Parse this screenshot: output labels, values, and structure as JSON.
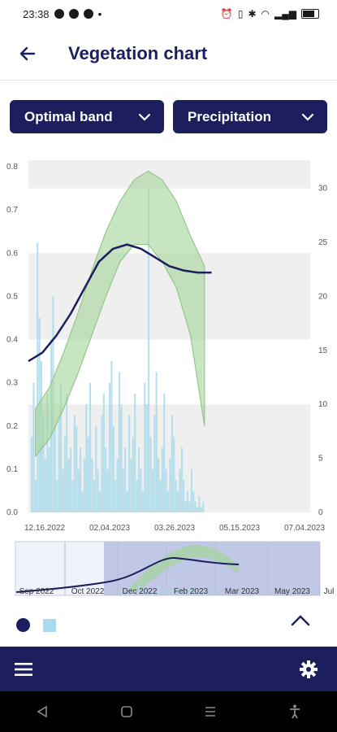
{
  "status_bar": {
    "time": "23:38",
    "left_icons": [
      "messenger-icon",
      "telegram-icon",
      "viber-icon",
      "more-dot-icon"
    ],
    "right_icons": [
      "alarm-icon",
      "vibrate-icon",
      "bluetooth-icon",
      "wifi-icon",
      "signal-icon",
      "battery-icon"
    ]
  },
  "header": {
    "title": "Vegetation chart",
    "back_icon": "arrow-left-icon"
  },
  "controls": {
    "dropdown_left": "Optimal band",
    "dropdown_right": "Precipitation",
    "chevron_icon": "chevron-down-icon"
  },
  "colors": {
    "navy": "#1c1e5e",
    "band_fill": "#a3d49a",
    "precip_bar": "#a9dbea",
    "plot_band": "#efefef"
  },
  "chart_data": {
    "type": "line",
    "y_left_ticks": [
      "0.0",
      "0.1",
      "0.2",
      "0.3",
      "0.4",
      "0.5",
      "0.6",
      "0.7",
      "0.8"
    ],
    "y_right_ticks": [
      "0",
      "5",
      "10",
      "15",
      "20",
      "25",
      "30"
    ],
    "x_ticks": [
      "12.16.2022",
      "02.04.2023",
      "03.26.2023",
      "05.15.2023",
      "07.04.2023"
    ],
    "y_left_range": [
      0,
      0.8
    ],
    "y_right_range": [
      0,
      32
    ],
    "series": [
      {
        "kind": "line",
        "x_days": [
          0,
          10,
          20,
          30,
          40,
          50,
          60,
          70,
          80,
          90,
          100,
          110,
          120,
          130
        ],
        "values": [
          0.35,
          0.37,
          0.41,
          0.46,
          0.52,
          0.58,
          0.61,
          0.62,
          0.61,
          0.59,
          0.57,
          0.56,
          0.555,
          0.555
        ]
      },
      {
        "kind": "band",
        "x_days": [
          5,
          15,
          25,
          35,
          45,
          55,
          65,
          75,
          85,
          95,
          105,
          115,
          125
        ],
        "upper": [
          0.24,
          0.29,
          0.37,
          0.46,
          0.56,
          0.65,
          0.72,
          0.77,
          0.79,
          0.77,
          0.72,
          0.64,
          0.57
        ],
        "lower": [
          0.13,
          0.17,
          0.24,
          0.32,
          0.41,
          0.5,
          0.58,
          0.62,
          0.62,
          0.58,
          0.52,
          0.41,
          0.2
        ]
      },
      {
        "kind": "bars",
        "axis": "right",
        "values": [
          7,
          12,
          3,
          25,
          18,
          14,
          9,
          5,
          11,
          6,
          16,
          20,
          8,
          3,
          9,
          12,
          4,
          7,
          11,
          5,
          6,
          3,
          9,
          8,
          4,
          6,
          2,
          5,
          10,
          7,
          12,
          5,
          3,
          8,
          4,
          2,
          9,
          11,
          6,
          4,
          12,
          14,
          8,
          3,
          5,
          13,
          10,
          4,
          6,
          2,
          9,
          5,
          7,
          11,
          3,
          6,
          4,
          2,
          12,
          10,
          30,
          7,
          4,
          9,
          13,
          5,
          3,
          6,
          11,
          4,
          2,
          5,
          9,
          7,
          3,
          2,
          4,
          6,
          3,
          1,
          2,
          1,
          4,
          2,
          1,
          0.5,
          1.5,
          0.5,
          1
        ]
      }
    ]
  },
  "navigator": {
    "months": [
      "Sep 2022",
      "Oct 2022",
      "Dec 2022",
      "Feb 2023",
      "Mar 2023",
      "May 2023",
      "Jul"
    ]
  },
  "legend": {
    "items": [
      "navy-dot",
      "light-blue-square"
    ]
  },
  "bottom_nav": {
    "menu_icon": "hamburger-menu-icon",
    "settings_icon": "gear-icon"
  },
  "system_nav": [
    "back-triangle-icon",
    "home-square-icon",
    "recents-icon",
    "accessibility-icon"
  ]
}
